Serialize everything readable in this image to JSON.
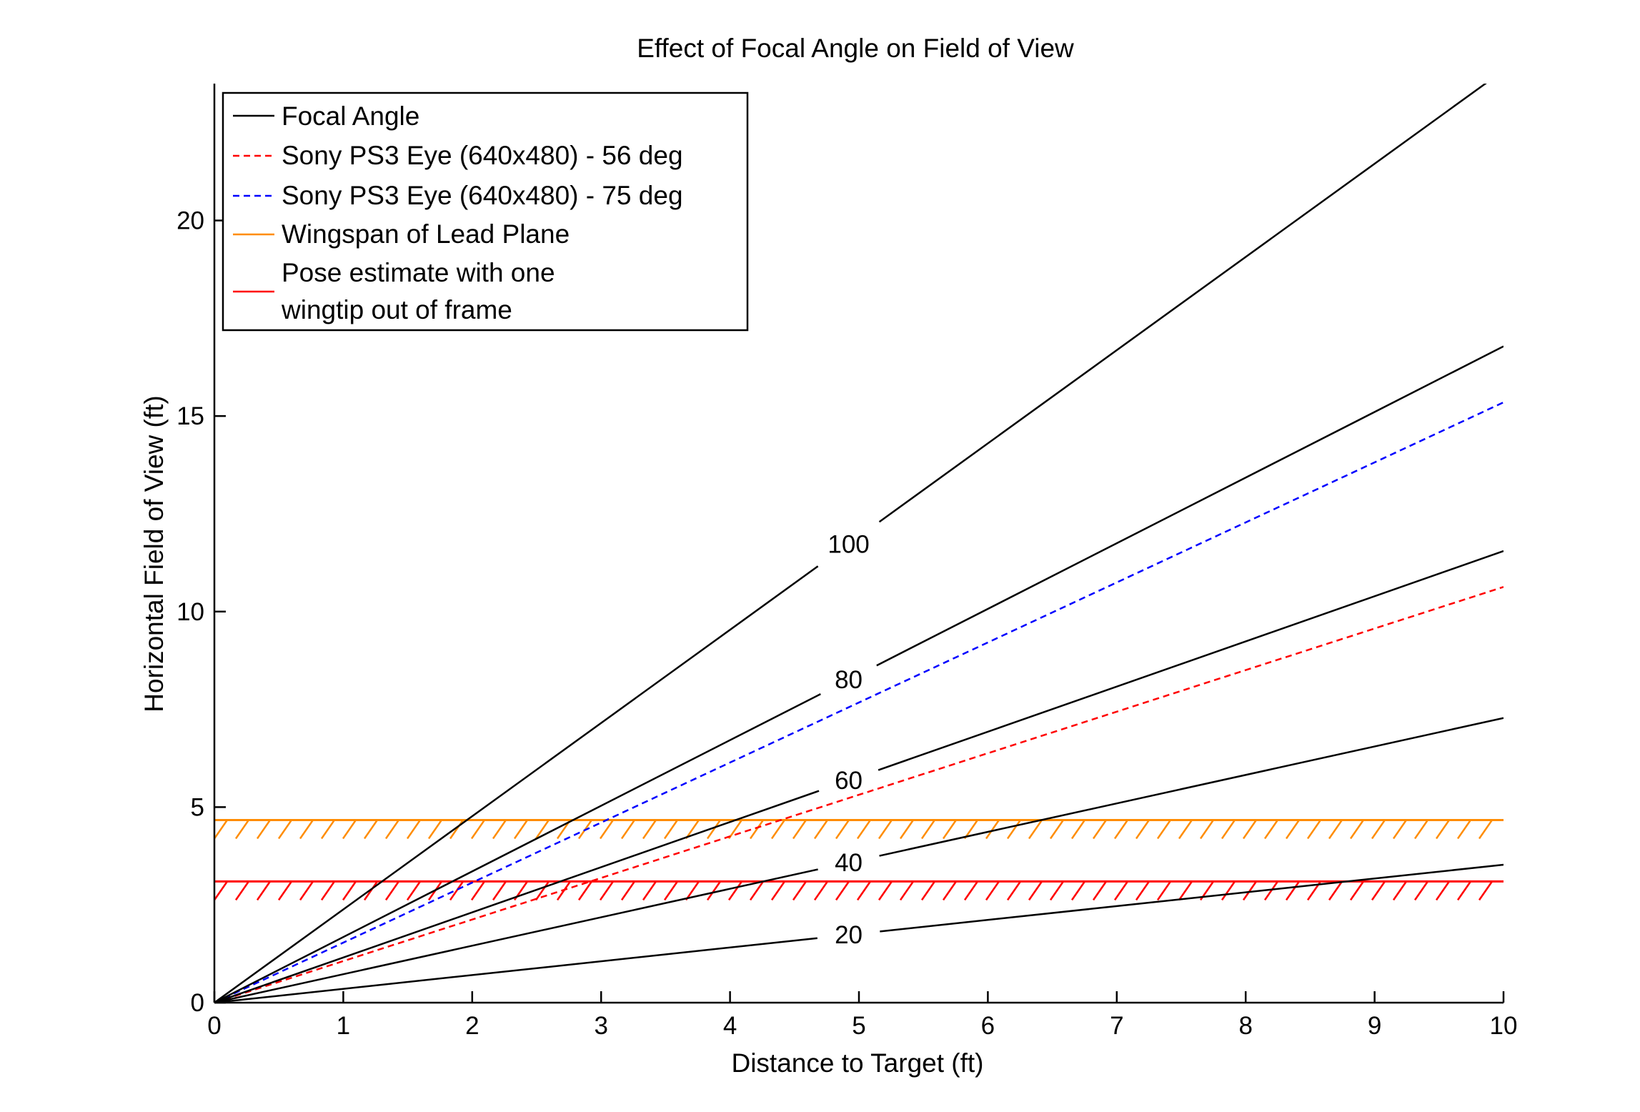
{
  "chart_data": {
    "type": "line",
    "title": "Effect of Focal Angle on Field of View",
    "xlabel": "Distance to Target  (ft)",
    "ylabel": "Horizontal Field of View  (ft)",
    "xlim": [
      0,
      10
    ],
    "ylim": [
      0,
      23.5
    ],
    "xticks": [
      0,
      1,
      2,
      3,
      4,
      5,
      6,
      7,
      8,
      9,
      10
    ],
    "yticks": [
      0,
      5,
      10,
      15,
      20
    ],
    "grid": false,
    "legend_position": "top-left",
    "focal_angle_lines": [
      {
        "label": "20",
        "slope": 0.3527,
        "label_x": 4.92
      },
      {
        "label": "40",
        "slope": 0.7279,
        "label_x": 4.92
      },
      {
        "label": "60",
        "slope": 1.1547,
        "label_x": 4.92
      },
      {
        "label": "80",
        "slope": 1.6782,
        "label_x": 4.92
      },
      {
        "label": "100",
        "slope": 2.3835,
        "label_x": 4.92
      }
    ],
    "series": [
      {
        "name": "Focal Angle",
        "style": "solid",
        "color": "#000000"
      },
      {
        "name": "Sony PS3 Eye (640x480) - 56 deg",
        "style": "dashed",
        "color": "#ff0000",
        "x": [
          0,
          10
        ],
        "y": [
          0,
          10.63
        ]
      },
      {
        "name": "Sony PS3 Eye (640x480) - 75 deg",
        "style": "dashed",
        "color": "#0000ff",
        "x": [
          0,
          10
        ],
        "y": [
          0,
          15.35
        ]
      },
      {
        "name": "Wingspan of Lead Plane",
        "style": "hatched-limit",
        "color": "#ff8c00",
        "y": 4.67
      },
      {
        "name_lines": [
          "Pose estimate with one",
          "wingtip out of frame"
        ],
        "style": "hatched-limit",
        "color": "#ff0000",
        "y": 3.1
      }
    ]
  }
}
